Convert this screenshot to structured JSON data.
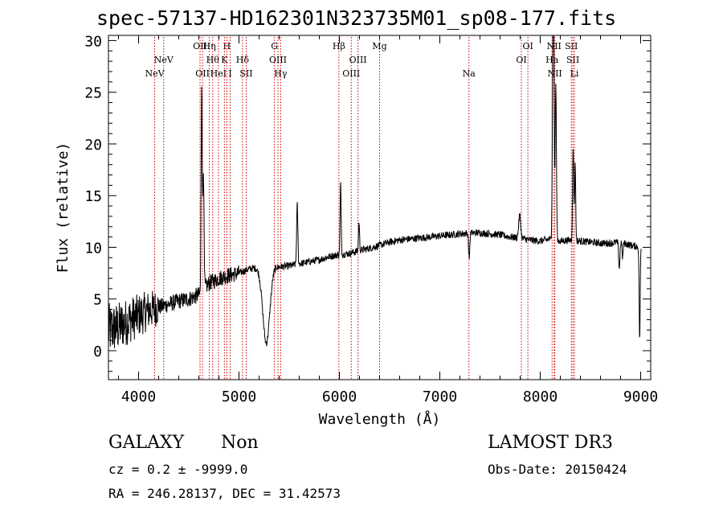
{
  "title": "spec-57137-HD162301N323735M01_sp08-177.fits",
  "chart_data": {
    "type": "line",
    "title": "spec-57137-HD162301N323735M01_sp08-177.fits",
    "xlabel": "Wavelength (Å)",
    "ylabel": "Flux (relative)",
    "xlim": [
      3700,
      9100
    ],
    "ylim": [
      -2.8,
      30.5
    ],
    "xticks": [
      4000,
      5000,
      6000,
      7000,
      8000,
      9000
    ],
    "yticks": [
      0,
      5,
      10,
      15,
      20,
      25,
      30
    ],
    "continuum": [
      [
        3700,
        2.0
      ],
      [
        3800,
        2.3
      ],
      [
        3900,
        2.9
      ],
      [
        4000,
        3.4
      ],
      [
        4100,
        3.9
      ],
      [
        4200,
        4.2
      ],
      [
        4300,
        4.5
      ],
      [
        4400,
        4.8
      ],
      [
        4500,
        5.0
      ],
      [
        4600,
        5.4
      ],
      [
        4700,
        6.5
      ],
      [
        4800,
        7.0
      ],
      [
        4900,
        7.3
      ],
      [
        5000,
        7.5
      ],
      [
        5100,
        7.9
      ],
      [
        5200,
        8.1
      ],
      [
        5300,
        8.3
      ],
      [
        5400,
        8.1
      ],
      [
        5500,
        8.2
      ],
      [
        5600,
        8.4
      ],
      [
        5700,
        8.6
      ],
      [
        5800,
        8.8
      ],
      [
        5900,
        9.1
      ],
      [
        6000,
        9.3
      ],
      [
        6100,
        9.4
      ],
      [
        6200,
        9.7
      ],
      [
        6300,
        9.9
      ],
      [
        6400,
        10.2
      ],
      [
        6500,
        10.5
      ],
      [
        6600,
        10.7
      ],
      [
        6700,
        10.8
      ],
      [
        6800,
        10.9
      ],
      [
        6900,
        11.0
      ],
      [
        7000,
        11.1
      ],
      [
        7100,
        11.2
      ],
      [
        7200,
        11.3
      ],
      [
        7300,
        11.4
      ],
      [
        7400,
        11.4
      ],
      [
        7500,
        11.3
      ],
      [
        7600,
        11.2
      ],
      [
        7700,
        11.0
      ],
      [
        7800,
        10.9
      ],
      [
        7900,
        10.7
      ],
      [
        8000,
        10.6
      ],
      [
        8100,
        10.8
      ],
      [
        8200,
        10.6
      ],
      [
        8300,
        10.7
      ],
      [
        8400,
        10.6
      ],
      [
        8500,
        10.5
      ],
      [
        8600,
        10.4
      ],
      [
        8700,
        10.4
      ],
      [
        8800,
        10.5
      ],
      [
        8900,
        10.2
      ],
      [
        9000,
        10.0
      ]
    ],
    "features": [
      [
        4628,
        20.5,
        5
      ],
      [
        4645,
        12.0,
        6
      ],
      [
        5272,
        -7.5,
        35
      ],
      [
        5580,
        5.8,
        6
      ],
      [
        6012,
        7.0,
        5
      ],
      [
        6195,
        2.8,
        5
      ],
      [
        7292,
        -2.5,
        6
      ],
      [
        7795,
        2.2,
        10
      ],
      [
        8130,
        30.0,
        7
      ],
      [
        8155,
        15.0,
        6
      ],
      [
        8328,
        9.0,
        6
      ],
      [
        8348,
        7.5,
        5
      ],
      [
        8787,
        -2.5,
        6
      ],
      [
        8820,
        -1.5,
        5
      ],
      [
        8990,
        -9.0,
        5
      ]
    ],
    "lines": [
      {
        "x": 4160,
        "label": "NeV",
        "row": 2
      },
      {
        "x": 4250,
        "label": "NeV",
        "row": 1
      },
      {
        "x": 4612,
        "label": "OII",
        "row": 0
      },
      {
        "x": 4637,
        "label": "OII",
        "row": 2
      },
      {
        "x": 4705,
        "label": "Hη",
        "row": 0
      },
      {
        "x": 4738,
        "label": "Hθ",
        "row": 1
      },
      {
        "x": 4795,
        "label": "HeI",
        "row": 2
      },
      {
        "x": 4878,
        "label": "H",
        "row": 0
      },
      {
        "x": 4855,
        "label": "K",
        "row": 1
      },
      {
        "x": 4912,
        "label": "I",
        "row": 2
      },
      {
        "x": 5035,
        "label": "Hδ",
        "row": 1
      },
      {
        "x": 5072,
        "label": "SII",
        "row": 2
      },
      {
        "x": 5353,
        "label": "G",
        "row": 0
      },
      {
        "x": 5388,
        "label": "OIII",
        "row": 1
      },
      {
        "x": 5415,
        "label": "Hγ",
        "row": 2
      },
      {
        "x": 5995,
        "label": "Hβ",
        "row": 0
      },
      {
        "x": 6118,
        "label": "OIII",
        "row": 2
      },
      {
        "x": 6185,
        "label": "OIII",
        "row": 1
      },
      {
        "x": 6400,
        "label": "Mg",
        "row": 0
      },
      {
        "x": 7290,
        "label": "Na",
        "row": 2
      },
      {
        "x": 7812,
        "label": "OI",
        "row": 1
      },
      {
        "x": 7877,
        "label": "OI",
        "row": 0
      },
      {
        "x": 8118,
        "label": "Ha",
        "row": 1
      },
      {
        "x": 8138,
        "label": "NII",
        "row": 0
      },
      {
        "x": 8145,
        "label": "NII",
        "row": 2
      },
      {
        "x": 8310,
        "label": "SII",
        "row": 0
      },
      {
        "x": 8325,
        "label": "SII",
        "row": 1
      },
      {
        "x": 8340,
        "label": "Li",
        "row": 2
      }
    ]
  },
  "info": {
    "object_class": "GALAXY",
    "subclass": "Non",
    "survey": "LAMOST DR3",
    "redshift": "cz = 0.2 ± -9999.0",
    "obs_date": "Obs-Date: 20150424",
    "coords": "RA = 246.28137, DEC =  31.42573"
  },
  "colors": {
    "line_marker": "#cc0000",
    "spectrum": "#000000",
    "axes": "#000000"
  }
}
